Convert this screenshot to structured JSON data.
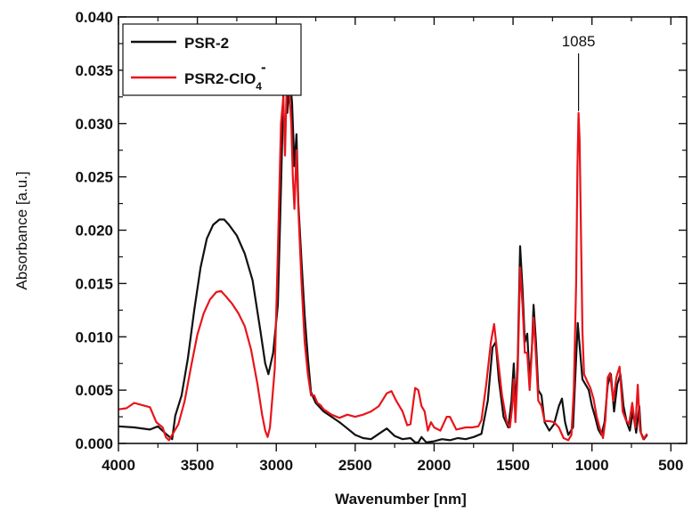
{
  "chart_data": {
    "type": "line",
    "xlabel": "Wavenumber [nm]",
    "ylabel": "Absorbance [a.u.]",
    "xlim": [
      4000,
      400
    ],
    "ylim": [
      0,
      0.04
    ],
    "x_ticks": [
      "4000",
      "3500",
      "3000",
      "2500",
      "2000",
      "1500",
      "1000",
      "500"
    ],
    "y_ticks": [
      "0.000",
      "0.005",
      "0.010",
      "0.015",
      "0.020",
      "0.025",
      "0.030",
      "0.035",
      "0.040"
    ],
    "grid": false,
    "legend_position": "top-left",
    "legend": [
      {
        "label": "PSR-2",
        "color": "#111111"
      },
      {
        "label": "PSR2-ClO",
        "sub": "4",
        "sup": "-",
        "color": "#e8141b"
      }
    ],
    "annotation": {
      "text": "1085",
      "x": 1085
    },
    "series": [
      {
        "name": "PSR-2",
        "color": "#111111",
        "points": [
          [
            4000,
            0.0016
          ],
          [
            3900,
            0.0015
          ],
          [
            3800,
            0.0013
          ],
          [
            3750,
            0.0016
          ],
          [
            3700,
            0.0009
          ],
          [
            3660,
            0.0004
          ],
          [
            3640,
            0.0026
          ],
          [
            3600,
            0.0045
          ],
          [
            3560,
            0.008
          ],
          [
            3520,
            0.0125
          ],
          [
            3480,
            0.0165
          ],
          [
            3440,
            0.0192
          ],
          [
            3400,
            0.0205
          ],
          [
            3360,
            0.021
          ],
          [
            3330,
            0.021
          ],
          [
            3300,
            0.0205
          ],
          [
            3250,
            0.0195
          ],
          [
            3200,
            0.0178
          ],
          [
            3150,
            0.0153
          ],
          [
            3100,
            0.0105
          ],
          [
            3070,
            0.0075
          ],
          [
            3050,
            0.0065
          ],
          [
            3020,
            0.0085
          ],
          [
            2990,
            0.013
          ],
          [
            2970,
            0.024
          ],
          [
            2955,
            0.033
          ],
          [
            2940,
            0.036
          ],
          [
            2930,
            0.031
          ],
          [
            2915,
            0.0345
          ],
          [
            2900,
            0.032
          ],
          [
            2885,
            0.026
          ],
          [
            2872,
            0.029
          ],
          [
            2860,
            0.0225
          ],
          [
            2840,
            0.017
          ],
          [
            2820,
            0.012
          ],
          [
            2800,
            0.008
          ],
          [
            2780,
            0.0048
          ],
          [
            2750,
            0.0038
          ],
          [
            2700,
            0.003
          ],
          [
            2650,
            0.0025
          ],
          [
            2600,
            0.002
          ],
          [
            2550,
            0.0014
          ],
          [
            2500,
            0.0008
          ],
          [
            2450,
            0.0005
          ],
          [
            2400,
            0.0004
          ],
          [
            2350,
            0.0009
          ],
          [
            2300,
            0.0014
          ],
          [
            2250,
            0.0007
          ],
          [
            2200,
            0.0004
          ],
          [
            2150,
            0.0005
          ],
          [
            2120,
            0.0001
          ],
          [
            2100,
            0.0001
          ],
          [
            2080,
            0.0006
          ],
          [
            2050,
            0.0001
          ],
          [
            2000,
            0.0002
          ],
          [
            1950,
            0.0004
          ],
          [
            1900,
            0.0003
          ],
          [
            1850,
            0.0005
          ],
          [
            1800,
            0.0004
          ],
          [
            1750,
            0.0006
          ],
          [
            1700,
            0.0009
          ],
          [
            1660,
            0.004
          ],
          [
            1630,
            0.009
          ],
          [
            1610,
            0.0095
          ],
          [
            1590,
            0.006
          ],
          [
            1560,
            0.0025
          ],
          [
            1530,
            0.0015
          ],
          [
            1510,
            0.004
          ],
          [
            1495,
            0.0075
          ],
          [
            1485,
            0.003
          ],
          [
            1470,
            0.008
          ],
          [
            1455,
            0.0185
          ],
          [
            1440,
            0.0145
          ],
          [
            1425,
            0.0095
          ],
          [
            1410,
            0.0103
          ],
          [
            1395,
            0.006
          ],
          [
            1380,
            0.009
          ],
          [
            1370,
            0.013
          ],
          [
            1355,
            0.0095
          ],
          [
            1340,
            0.005
          ],
          [
            1320,
            0.0045
          ],
          [
            1300,
            0.002
          ],
          [
            1270,
            0.0012
          ],
          [
            1240,
            0.0018
          ],
          [
            1210,
            0.0035
          ],
          [
            1190,
            0.0042
          ],
          [
            1170,
            0.002
          ],
          [
            1150,
            0.0008
          ],
          [
            1120,
            0.0015
          ],
          [
            1100,
            0.008
          ],
          [
            1090,
            0.0113
          ],
          [
            1080,
            0.0095
          ],
          [
            1060,
            0.006
          ],
          [
            1040,
            0.0055
          ],
          [
            1020,
            0.005
          ],
          [
            1000,
            0.0035
          ],
          [
            980,
            0.0025
          ],
          [
            960,
            0.0013
          ],
          [
            940,
            0.0008
          ],
          [
            920,
            0.002
          ],
          [
            900,
            0.0055
          ],
          [
            880,
            0.0065
          ],
          [
            860,
            0.003
          ],
          [
            840,
            0.0055
          ],
          [
            820,
            0.0065
          ],
          [
            800,
            0.0035
          ],
          [
            780,
            0.002
          ],
          [
            760,
            0.0012
          ],
          [
            740,
            0.003
          ],
          [
            720,
            0.001
          ],
          [
            700,
            0.0035
          ],
          [
            690,
            0.001
          ],
          [
            670,
            0.0004
          ],
          [
            650,
            0.0008
          ]
        ]
      },
      {
        "name": "PSR2-ClO4-",
        "color": "#e8141b",
        "points": [
          [
            4000,
            0.0032
          ],
          [
            3950,
            0.0033
          ],
          [
            3900,
            0.0038
          ],
          [
            3850,
            0.0036
          ],
          [
            3800,
            0.0034
          ],
          [
            3760,
            0.002
          ],
          [
            3720,
            0.0015
          ],
          [
            3700,
            0.0006
          ],
          [
            3680,
            0.0003
          ],
          [
            3660,
            0.0008
          ],
          [
            3620,
            0.0018
          ],
          [
            3580,
            0.004
          ],
          [
            3540,
            0.0072
          ],
          [
            3500,
            0.0102
          ],
          [
            3460,
            0.0122
          ],
          [
            3420,
            0.0135
          ],
          [
            3380,
            0.0142
          ],
          [
            3350,
            0.0143
          ],
          [
            3320,
            0.0138
          ],
          [
            3280,
            0.0131
          ],
          [
            3240,
            0.0122
          ],
          [
            3200,
            0.011
          ],
          [
            3160,
            0.0088
          ],
          [
            3120,
            0.0056
          ],
          [
            3090,
            0.0027
          ],
          [
            3070,
            0.0012
          ],
          [
            3055,
            0.0006
          ],
          [
            3040,
            0.0015
          ],
          [
            3010,
            0.007
          ],
          [
            2990,
            0.018
          ],
          [
            2970,
            0.03
          ],
          [
            2955,
            0.0325
          ],
          [
            2945,
            0.027
          ],
          [
            2935,
            0.0328
          ],
          [
            2920,
            0.0335
          ],
          [
            2905,
            0.03
          ],
          [
            2895,
            0.025
          ],
          [
            2885,
            0.022
          ],
          [
            2872,
            0.0275
          ],
          [
            2860,
            0.022
          ],
          [
            2840,
            0.015
          ],
          [
            2820,
            0.0095
          ],
          [
            2800,
            0.0065
          ],
          [
            2780,
            0.0045
          ],
          [
            2760,
            0.0045
          ],
          [
            2740,
            0.0038
          ],
          [
            2720,
            0.0036
          ],
          [
            2700,
            0.0032
          ],
          [
            2650,
            0.0027
          ],
          [
            2600,
            0.0024
          ],
          [
            2550,
            0.0027
          ],
          [
            2500,
            0.0025
          ],
          [
            2450,
            0.0027
          ],
          [
            2400,
            0.003
          ],
          [
            2350,
            0.0035
          ],
          [
            2300,
            0.0047
          ],
          [
            2270,
            0.0049
          ],
          [
            2240,
            0.004
          ],
          [
            2200,
            0.003
          ],
          [
            2170,
            0.0017
          ],
          [
            2150,
            0.0018
          ],
          [
            2120,
            0.0052
          ],
          [
            2100,
            0.005
          ],
          [
            2080,
            0.0035
          ],
          [
            2060,
            0.003
          ],
          [
            2040,
            0.0012
          ],
          [
            2020,
            0.002
          ],
          [
            2000,
            0.0015
          ],
          [
            1960,
            0.0012
          ],
          [
            1920,
            0.0025
          ],
          [
            1900,
            0.0025
          ],
          [
            1860,
            0.0013
          ],
          [
            1800,
            0.0015
          ],
          [
            1760,
            0.0015
          ],
          [
            1720,
            0.0016
          ],
          [
            1700,
            0.0022
          ],
          [
            1670,
            0.0055
          ],
          [
            1640,
            0.0095
          ],
          [
            1620,
            0.0112
          ],
          [
            1600,
            0.0085
          ],
          [
            1570,
            0.0045
          ],
          [
            1540,
            0.002
          ],
          [
            1520,
            0.0015
          ],
          [
            1505,
            0.0035
          ],
          [
            1495,
            0.006
          ],
          [
            1485,
            0.002
          ],
          [
            1470,
            0.007
          ],
          [
            1455,
            0.0165
          ],
          [
            1440,
            0.013
          ],
          [
            1425,
            0.0085
          ],
          [
            1410,
            0.0085
          ],
          [
            1395,
            0.005
          ],
          [
            1385,
            0.0075
          ],
          [
            1370,
            0.0118
          ],
          [
            1355,
            0.0082
          ],
          [
            1340,
            0.004
          ],
          [
            1320,
            0.0035
          ],
          [
            1300,
            0.0021
          ],
          [
            1270,
            0.0021
          ],
          [
            1240,
            0.002
          ],
          [
            1210,
            0.0015
          ],
          [
            1180,
            0.0005
          ],
          [
            1150,
            0.0003
          ],
          [
            1130,
            0.0008
          ],
          [
            1115,
            0.005
          ],
          [
            1100,
            0.015
          ],
          [
            1092,
            0.026
          ],
          [
            1085,
            0.031
          ],
          [
            1078,
            0.0285
          ],
          [
            1070,
            0.02
          ],
          [
            1060,
            0.0105
          ],
          [
            1050,
            0.0065
          ],
          [
            1030,
            0.0058
          ],
          [
            1010,
            0.0052
          ],
          [
            990,
            0.0042
          ],
          [
            970,
            0.0025
          ],
          [
            950,
            0.0014
          ],
          [
            930,
            0.0005
          ],
          [
            915,
            0.0022
          ],
          [
            900,
            0.0062
          ],
          [
            885,
            0.0066
          ],
          [
            865,
            0.004
          ],
          [
            845,
            0.0062
          ],
          [
            825,
            0.0072
          ],
          [
            805,
            0.003
          ],
          [
            785,
            0.0022
          ],
          [
            765,
            0.0018
          ],
          [
            745,
            0.0038
          ],
          [
            725,
            0.0015
          ],
          [
            710,
            0.0055
          ],
          [
            695,
            0.0012
          ],
          [
            675,
            0.0004
          ],
          [
            660,
            0.0007
          ],
          [
            650,
            0.0009
          ]
        ]
      }
    ]
  }
}
